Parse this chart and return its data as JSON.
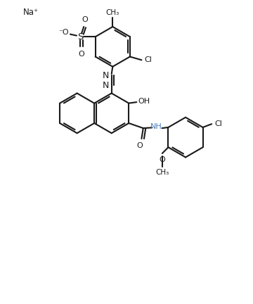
{
  "background_color": "#ffffff",
  "line_color": "#1a1a1a",
  "bond_lw": 1.5,
  "text_color": "#1a1a1a",
  "nh_color": "#4a7fc1",
  "figsize": [
    3.6,
    4.32
  ],
  "dpi": 100,
  "xlim": [
    0,
    9
  ],
  "ylim": [
    0,
    10.8
  ]
}
